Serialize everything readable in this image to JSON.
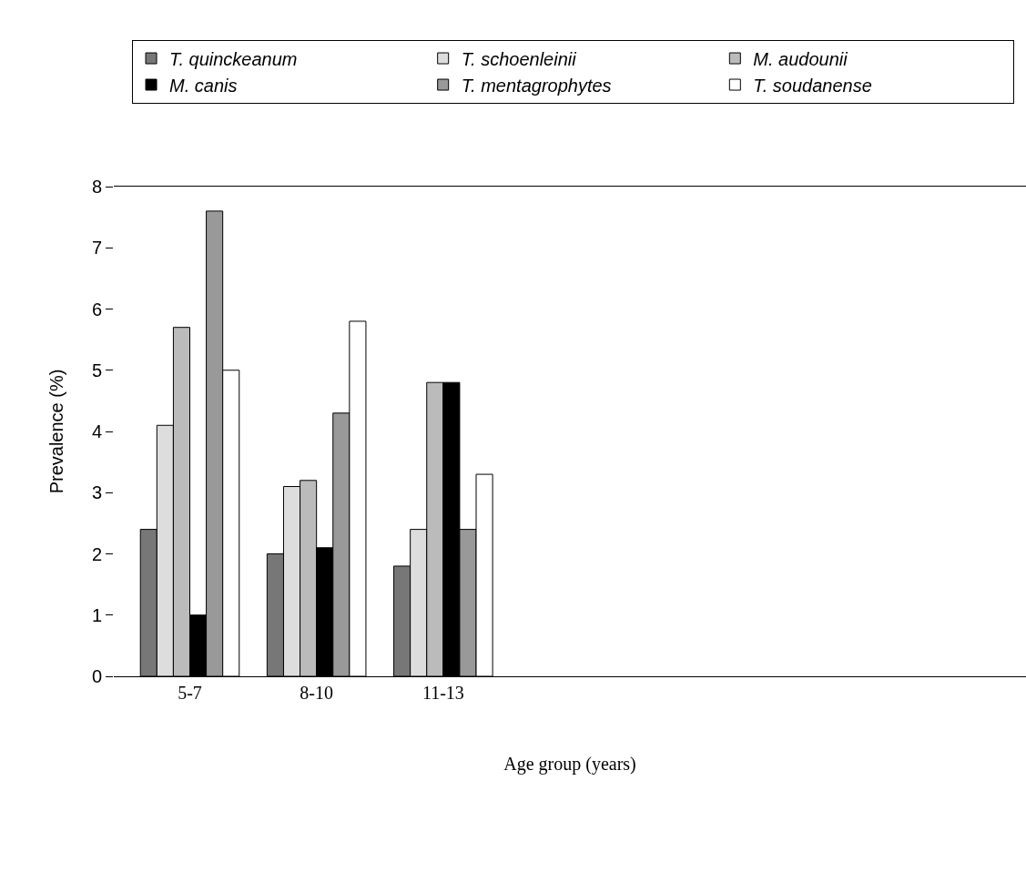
{
  "chart_data": {
    "type": "bar",
    "xlabel": "Age group (years)",
    "ylabel": "Prevalence (%)",
    "categories": [
      "5-7",
      "8-10",
      "11-13",
      null,
      null,
      null,
      null
    ],
    "series": [
      {
        "name": "T. quinckeanum",
        "color": "#777777",
        "values": [
          2.4,
          2.0,
          1.8,
          null,
          null,
          null,
          null
        ]
      },
      {
        "name": "T. schoenleinii",
        "color": "#dddddd",
        "values": [
          4.1,
          3.1,
          2.4,
          null,
          null,
          null,
          null
        ]
      },
      {
        "name": "M. audounii",
        "color": "#bbbbbb",
        "values": [
          5.7,
          3.2,
          4.8,
          null,
          null,
          null,
          null
        ]
      },
      {
        "name": "M. canis",
        "color": "#000000",
        "values": [
          1.0,
          2.1,
          4.8,
          null,
          null,
          null,
          null
        ]
      },
      {
        "name": "T. mentagrophytes",
        "color": "#999999",
        "values": [
          7.6,
          4.3,
          2.4,
          null,
          null,
          null,
          null
        ]
      },
      {
        "name": "T. soudanense",
        "color": "#ffffff",
        "values": [
          5.0,
          5.8,
          3.3,
          null,
          null,
          null,
          null
        ]
      }
    ],
    "ylim": [
      0,
      8
    ],
    "yticks": [
      0,
      1,
      2,
      3,
      4,
      5,
      6,
      7,
      8
    ],
    "grid": false,
    "legend": "top"
  }
}
